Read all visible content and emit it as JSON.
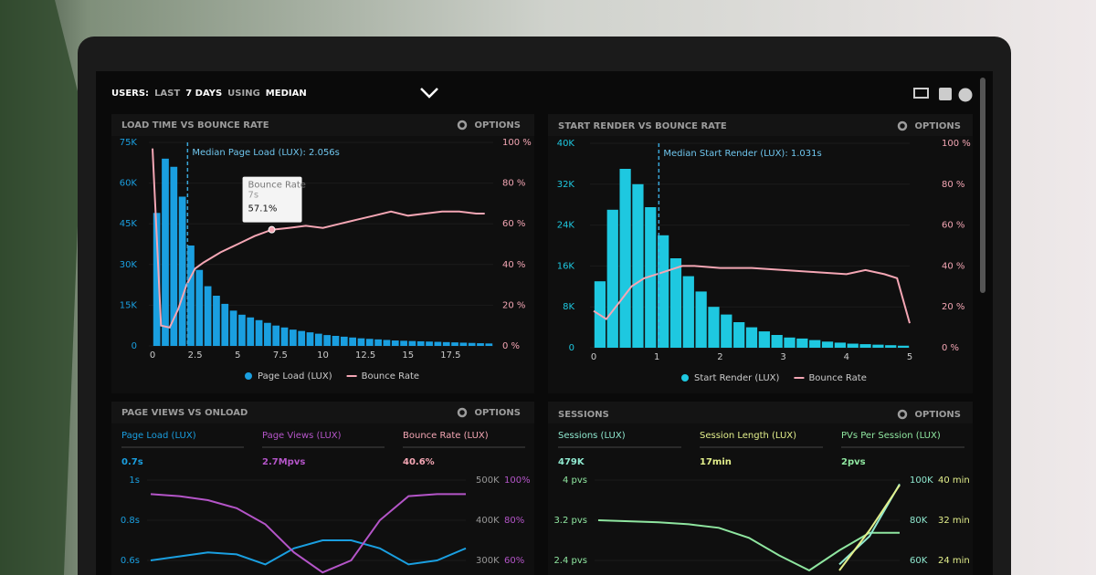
{
  "header": {
    "title": [
      {
        "text": "USERS:",
        "strong": true
      },
      {
        "text": "LAST",
        "strong": false
      },
      {
        "text": "7 DAYS",
        "strong": true
      },
      {
        "text": "USING",
        "strong": false
      },
      {
        "text": "MEDIAN",
        "strong": true
      }
    ]
  },
  "load_chart": {
    "type": "histogram",
    "title": "LOAD TIME VS BOUNCE RATE",
    "options": "OPTIONS",
    "annotation": "Median Page Load (LUX): 2.056s",
    "median": 2.056,
    "tooltip": {
      "title": "Bounce Rate",
      "x_label": "7s",
      "value_label": "57.1%",
      "x": 7,
      "value": 57.1
    },
    "xlim": [
      0,
      20
    ],
    "xticks": [
      0,
      2.5,
      5,
      7.5,
      10,
      12.5,
      15,
      17.5
    ],
    "ylim": [
      0,
      75000
    ],
    "yticks": [
      0,
      {
        "value": 15000,
        "label": "15K"
      },
      {
        "value": 30000,
        "label": "30K"
      },
      {
        "value": 45000,
        "label": "45K"
      },
      {
        "value": 60000,
        "label": "60K"
      },
      {
        "value": 75000,
        "label": "75K"
      }
    ],
    "y2lim": [
      0,
      100
    ],
    "y2ticks": [
      {
        "value": 0,
        "label": "0 %"
      },
      {
        "value": 20,
        "label": "20 %"
      },
      {
        "value": 40,
        "label": "40 %"
      },
      {
        "value": 60,
        "label": "60 %"
      },
      {
        "value": 80,
        "label": "80 %"
      },
      {
        "value": 100,
        "label": "100 %"
      }
    ],
    "bins": [
      0,
      0.5,
      1,
      1.5,
      2,
      2.5,
      3,
      3.5,
      4,
      4.5,
      5,
      5.5,
      6,
      6.5,
      7,
      7.5,
      8,
      8.5,
      9,
      9.5,
      10,
      10.5,
      11,
      11.5,
      12,
      12.5,
      13,
      13.5,
      14,
      14.5,
      15,
      15.5,
      16,
      16.5,
      17,
      17.5,
      18,
      18.5,
      19,
      19.5,
      20
    ],
    "series": [
      {
        "name": "Page Load (LUX)",
        "color": "#1a9fe0",
        "values": [
          49000,
          69000,
          66000,
          55000,
          37000,
          28000,
          22000,
          18500,
          15500,
          13000,
          11500,
          10500,
          9500,
          8500,
          7500,
          6800,
          6000,
          5500,
          5000,
          4500,
          4000,
          3700,
          3400,
          3100,
          2800,
          2600,
          2400,
          2200,
          2000,
          1900,
          1800,
          1700,
          1600,
          1500,
          1400,
          1300,
          1200,
          1100,
          1000,
          900
        ]
      },
      {
        "name": "Bounce Rate",
        "color": "#f4a6b4",
        "axis": "y2",
        "x": [
          0,
          0.5,
          1,
          1.5,
          2,
          2.5,
          3,
          4,
          5,
          6,
          7,
          8,
          9,
          10,
          11,
          12,
          13,
          14,
          15,
          16,
          17,
          18,
          19,
          19.5
        ],
        "values": [
          97,
          10,
          9,
          18,
          30,
          38,
          41,
          46,
          50,
          54,
          57.1,
          58,
          59,
          58,
          60,
          62,
          64,
          66,
          64,
          65,
          66,
          66,
          65,
          65
        ]
      }
    ]
  },
  "render_chart": {
    "type": "histogram",
    "title": "START RENDER VS BOUNCE RATE",
    "options": "OPTIONS",
    "annotation": "Median Start Render (LUX): 1.031s",
    "median": 1.031,
    "xlim": [
      0,
      5
    ],
    "xticks": [
      0,
      1,
      2,
      3,
      4,
      5
    ],
    "ylim": [
      0,
      40000
    ],
    "yticks": [
      0,
      {
        "value": 8000,
        "label": "8K"
      },
      {
        "value": 16000,
        "label": "16K"
      },
      {
        "value": 24000,
        "label": "24K"
      },
      {
        "value": 32000,
        "label": "32K"
      },
      {
        "value": 40000,
        "label": "40K"
      }
    ],
    "y2lim": [
      0,
      100
    ],
    "y2ticks": [
      {
        "value": 0,
        "label": "0 %"
      },
      {
        "value": 20,
        "label": "20 %"
      },
      {
        "value": 40,
        "label": "40 %"
      },
      {
        "value": 60,
        "label": "60 %"
      },
      {
        "value": 80,
        "label": "80 %"
      },
      {
        "value": 100,
        "label": "100 %"
      }
    ],
    "bins": [
      0,
      0.2,
      0.4,
      0.6,
      0.8,
      1,
      1.2,
      1.4,
      1.6,
      1.8,
      2,
      2.2,
      2.4,
      2.6,
      2.8,
      3,
      3.2,
      3.4,
      3.6,
      3.8,
      4,
      4.2,
      4.4,
      4.6,
      4.8,
      5
    ],
    "series": [
      {
        "name": "Start Render (LUX)",
        "color": "#1ec8e0",
        "values": [
          13000,
          27000,
          35000,
          32000,
          27500,
          22000,
          17500,
          14000,
          11000,
          8000,
          6500,
          5000,
          4000,
          3200,
          2500,
          2000,
          1800,
          1500,
          1200,
          1000,
          800,
          700,
          600,
          500,
          400
        ]
      },
      {
        "name": "Bounce Rate",
        "color": "#f4a6b4",
        "axis": "y2",
        "x": [
          0,
          0.2,
          0.4,
          0.6,
          0.8,
          1,
          1.2,
          1.4,
          1.6,
          2,
          2.5,
          3,
          3.5,
          4,
          4.3,
          4.6,
          4.8,
          5
        ],
        "values": [
          18,
          14,
          22,
          30,
          34,
          36,
          38,
          40,
          40,
          39,
          39,
          38,
          37,
          36,
          38,
          36,
          34,
          12
        ]
      }
    ]
  },
  "page_views": {
    "type": "line",
    "title": "PAGE VIEWS VS ONLOAD",
    "options": "OPTIONS",
    "metrics": [
      {
        "label": "Page Load (LUX)",
        "value": "0.7s",
        "color": "#1a9fe0"
      },
      {
        "label": "Page Views (LUX)",
        "value": "2.7Mpvs",
        "color": "#b455c8"
      },
      {
        "label": "Bounce Rate (LUX)",
        "value": "40.6%",
        "color": "#f4a6b4"
      }
    ],
    "ylim": [
      0.5,
      1
    ],
    "yticks": [
      {
        "value": 0.6,
        "label": "0.6s"
      },
      {
        "value": 0.8,
        "label": "0.8s"
      },
      {
        "value": 1,
        "label": "1s"
      }
    ],
    "y2lim": [
      250000,
      500000
    ],
    "y2ticks": [
      {
        "value": 300000,
        "label": "300K"
      },
      {
        "value": 400000,
        "label": "400K"
      },
      {
        "value": 500000,
        "label": "500K"
      }
    ],
    "y3lim": [
      50,
      100
    ],
    "y3ticks": [
      {
        "value": 60,
        "label": "60%"
      },
      {
        "value": 80,
        "label": "80%"
      },
      {
        "value": 100,
        "label": "100%"
      }
    ],
    "series": [
      {
        "color": "#1a9fe0",
        "values": [
          0.6,
          0.62,
          0.64,
          0.63,
          0.58,
          0.66,
          0.7,
          0.7,
          0.66,
          0.58,
          0.6,
          0.66
        ]
      },
      {
        "color": "#b455c8",
        "axis": "y3",
        "values": [
          93,
          92,
          90,
          86,
          78,
          64,
          54,
          60,
          80,
          92,
          93,
          93
        ]
      }
    ]
  },
  "sessions": {
    "type": "line",
    "title": "SESSIONS",
    "options": "OPTIONS",
    "metrics": [
      {
        "label": "Sessions (LUX)",
        "value": "479K",
        "color": "#8fe8cf"
      },
      {
        "label": "Session Length (LUX)",
        "value": "17min",
        "color": "#e3ef8c"
      },
      {
        "label": "PVs Per Session (LUX)",
        "value": "2pvs",
        "color": "#8fe6a0"
      }
    ],
    "ylim": [
      2,
      4
    ],
    "yticks": [
      {
        "value": 2.4,
        "label": "2.4 pvs"
      },
      {
        "value": 3.2,
        "label": "3.2 pvs"
      },
      {
        "value": 4,
        "label": "4 pvs"
      }
    ],
    "y2lim": [
      50000,
      100000
    ],
    "y2ticks": [
      {
        "value": 60000,
        "label": "60K"
      },
      {
        "value": 80000,
        "label": "80K"
      },
      {
        "value": 100000,
        "label": "100K"
      }
    ],
    "y3lim": [
      20,
      40
    ],
    "y3ticks": [
      {
        "value": 24,
        "label": "24 min"
      },
      {
        "value": 32,
        "label": "32 min"
      },
      {
        "value": 40,
        "label": "40 min"
      }
    ],
    "series": [
      {
        "color": "#8fe6a0",
        "values": [
          3.2,
          3.18,
          3.16,
          3.12,
          3.05,
          2.85,
          2.5,
          2.2,
          2.6,
          2.95,
          2.95
        ]
      },
      {
        "color": "#8fe8cf",
        "axis": "y2",
        "values": [
          null,
          null,
          null,
          null,
          null,
          null,
          null,
          null,
          58000,
          72000,
          98000
        ]
      },
      {
        "color": "#e3ef8c",
        "axis": "y3",
        "values": [
          null,
          null,
          null,
          null,
          null,
          null,
          null,
          null,
          22,
          30,
          39
        ]
      }
    ]
  }
}
